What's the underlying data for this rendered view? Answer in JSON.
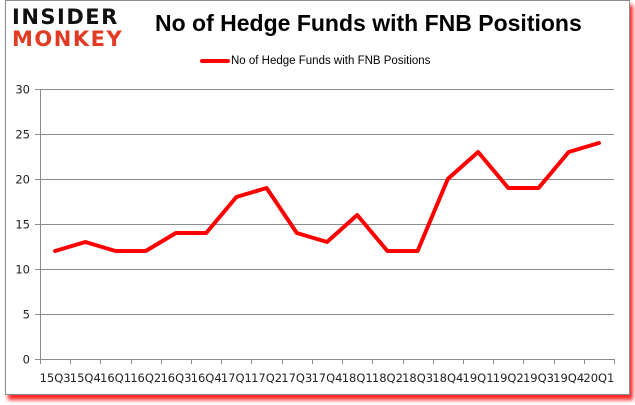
{
  "logo": {
    "line1": "INSIDER",
    "line2": "MONKEY",
    "line1_color": "#111111",
    "line2_color": "#e23b24"
  },
  "chart_data": {
    "type": "line",
    "title": "No of Hedge Funds with FNB Positions",
    "xlabel": "",
    "ylabel": "",
    "categories": [
      "15Q3",
      "15Q4",
      "16Q1",
      "16Q2",
      "16Q3",
      "16Q4",
      "17Q1",
      "17Q2",
      "17Q3",
      "17Q4",
      "18Q1",
      "18Q2",
      "18Q3",
      "18Q4",
      "19Q1",
      "19Q2",
      "19Q3",
      "19Q4",
      "20Q1"
    ],
    "series": [
      {
        "name": "No of Hedge Funds with FNB Positions",
        "color": "#ff0000",
        "values": [
          12,
          13,
          12,
          12,
          14,
          14,
          18,
          19,
          14,
          13,
          16,
          12,
          12,
          20,
          23,
          19,
          19,
          23,
          24
        ]
      }
    ],
    "ylim": [
      0,
      30
    ],
    "yticks": [
      0,
      5,
      10,
      15,
      20,
      25,
      30
    ],
    "grid": true,
    "legend_position": "top"
  },
  "colors": {
    "line": "#ff0000",
    "grid": "#8c8c8c",
    "frame_shadow": "#ff0000"
  }
}
